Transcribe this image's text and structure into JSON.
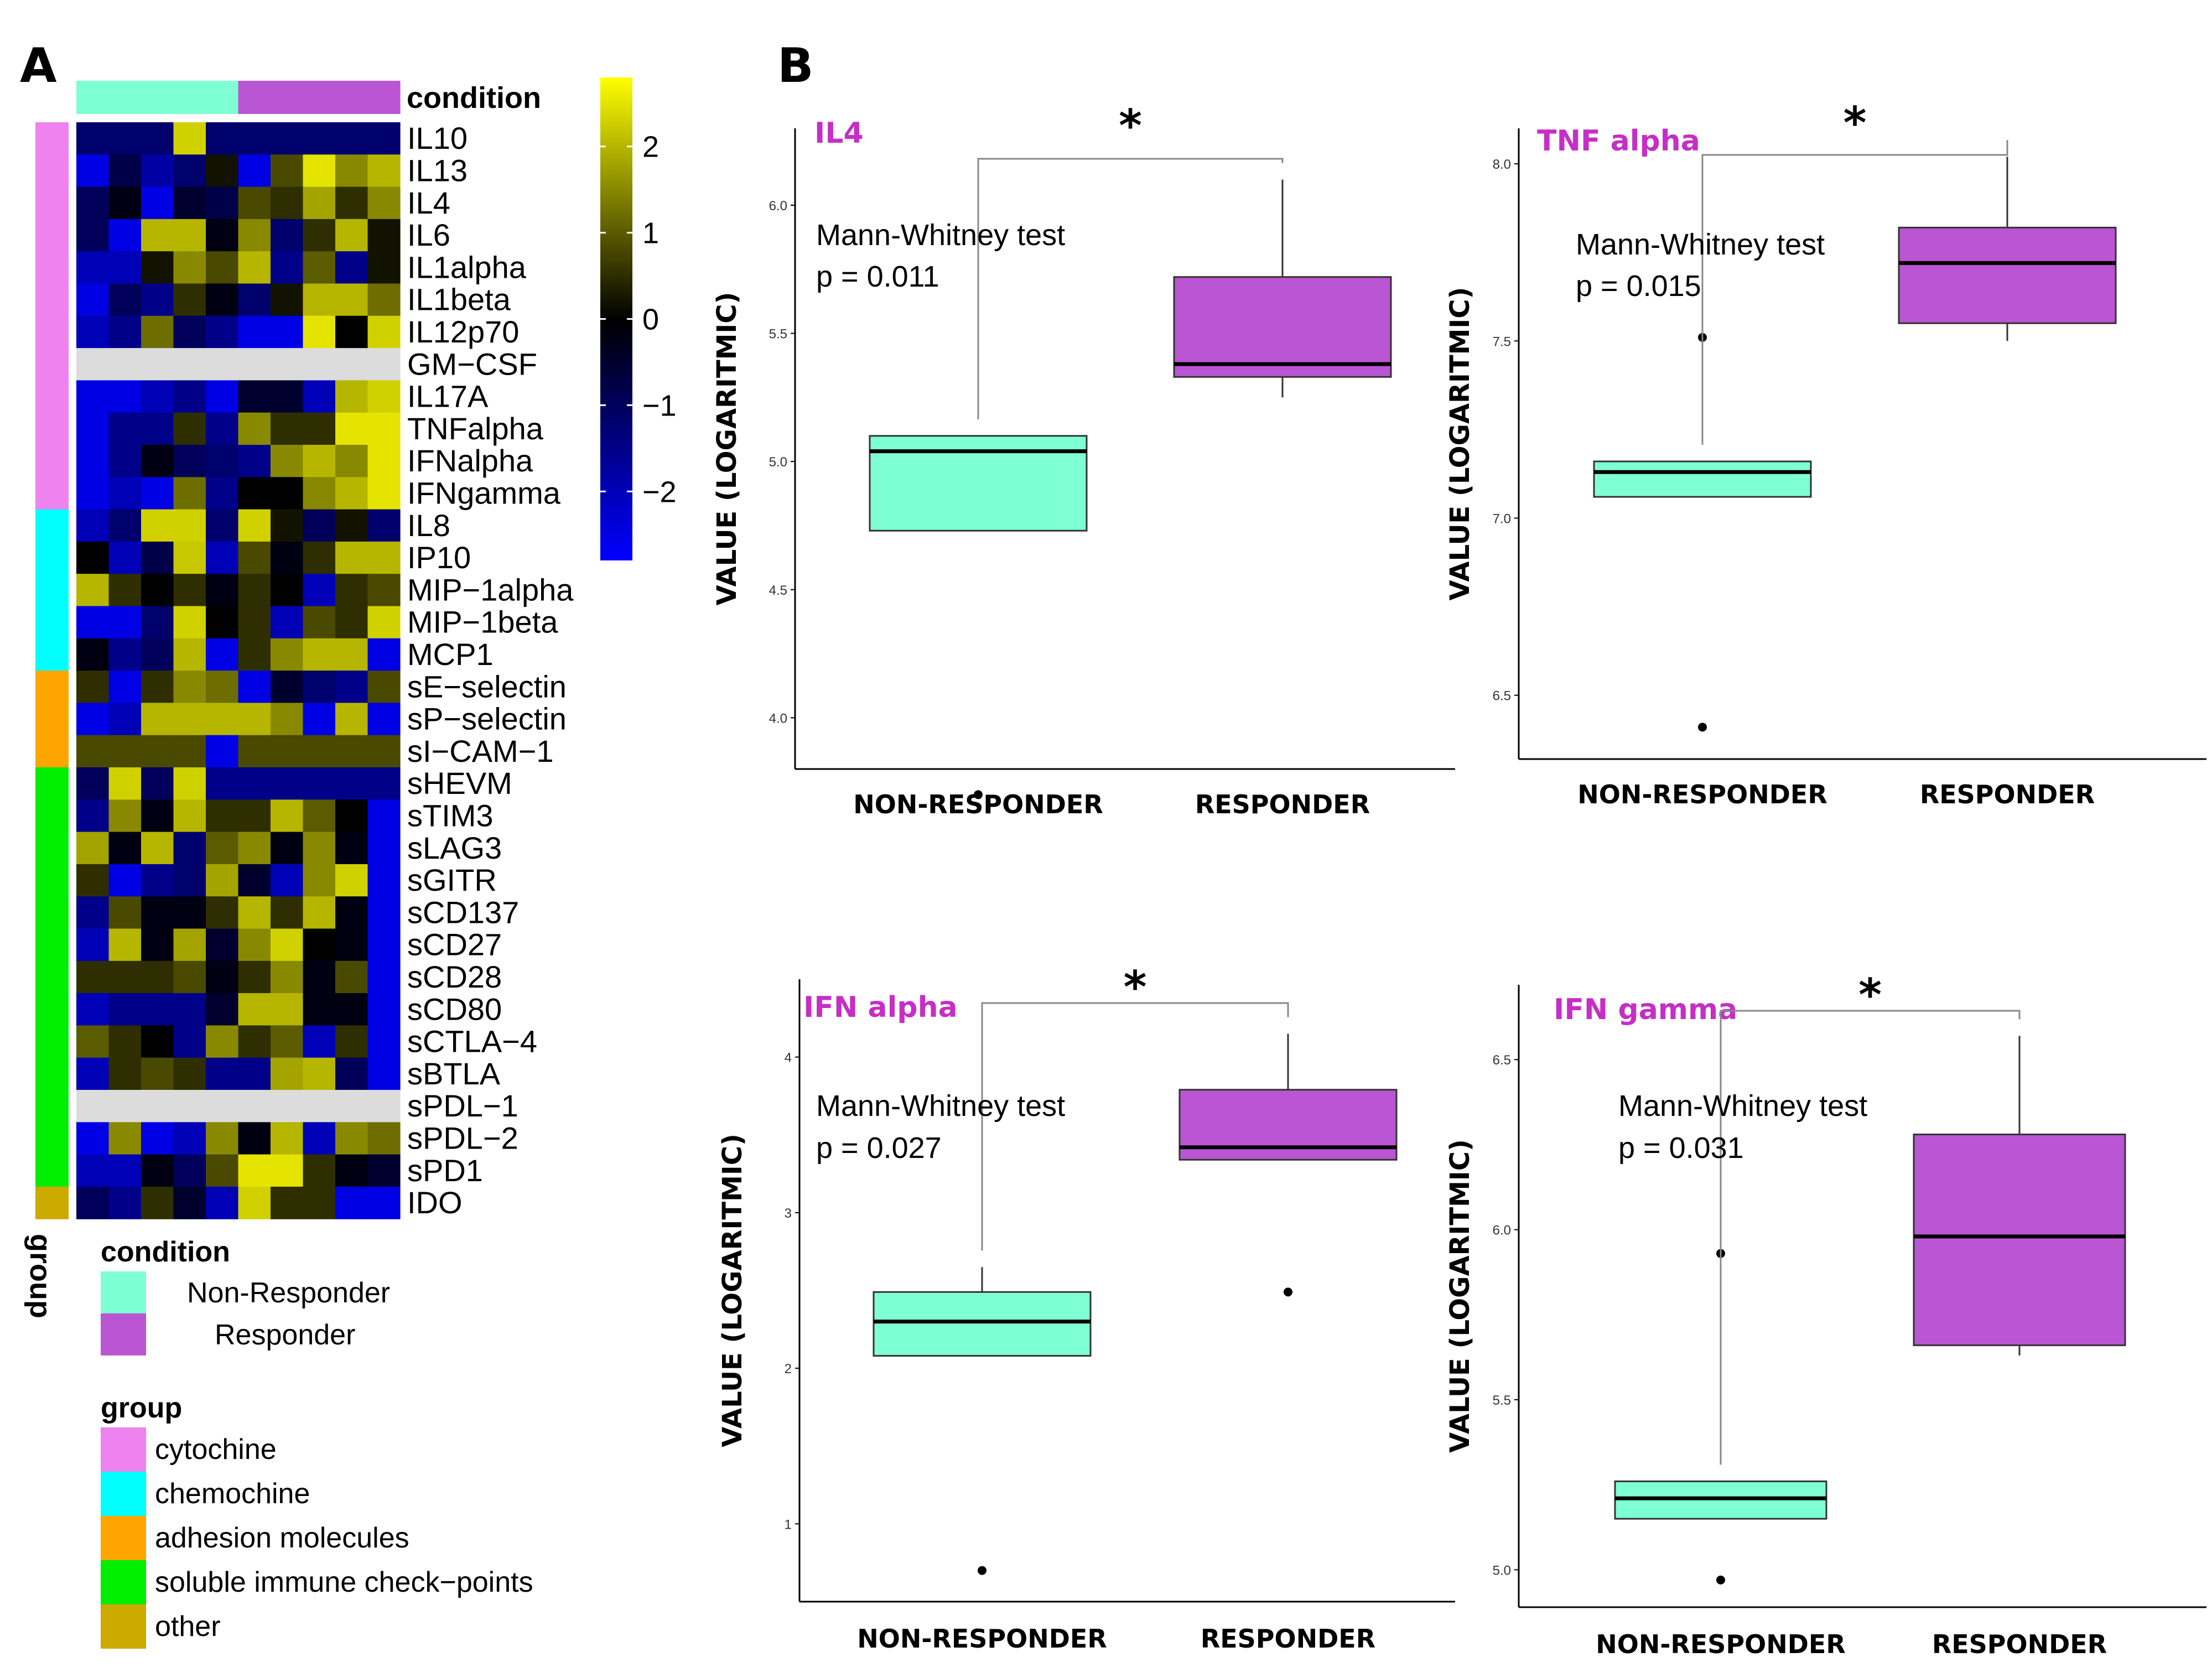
{
  "panels": {
    "a_label": "A",
    "b_label": "B"
  },
  "colors": {
    "non_responder": "#7FFFD4",
    "responder": "#BA55D3",
    "heat_low": "#0000FF",
    "heat_mid": "#000000",
    "heat_high": "#FFFF00",
    "na": "#DCDCDC",
    "group_colors": [
      "#EE82EE",
      "#00FFFF",
      "#FFA500",
      "#00EE00",
      "#CCAA00"
    ]
  },
  "chart_data": [
    {
      "type": "heatmap",
      "condition_header": "condition",
      "group_label": "group",
      "columns_conditions": [
        "Non-Responder",
        "Non-Responder",
        "Non-Responder",
        "Non-Responder",
        "Non-Responder",
        "Responder",
        "Responder",
        "Responder",
        "Responder",
        "Responder"
      ],
      "rows": [
        "IL10",
        "IL13",
        "IL4",
        "IL6",
        "IL1alpha",
        "IL1beta",
        "IL12p70",
        "GM−CSF",
        "IL17A",
        "TNFalpha",
        "IFNalpha",
        "IFNgamma",
        "IL8",
        "IP10",
        "MIP−1alpha",
        "MIP−1beta",
        "MCP1",
        "sE−selectin",
        "sP−selectin",
        "sI−CAM−1",
        "sHEVM",
        "sTIM3",
        "sLAG3",
        "sGITR",
        "sCD137",
        "sCD27",
        "sCD28",
        "sCD80",
        "sCTLA−4",
        "sBTLA",
        "sPDL−1",
        "sPDL−2",
        "sPD1",
        "IDO"
      ],
      "row_groups": [
        "cytochine",
        "cytochine",
        "cytochine",
        "cytochine",
        "cytochine",
        "cytochine",
        "cytochine",
        "cytochine",
        "cytochine",
        "cytochine",
        "cytochine",
        "cytochine",
        "chemochine",
        "chemochine",
        "chemochine",
        "chemochine",
        "chemochine",
        "adhesion molecules",
        "adhesion molecules",
        "adhesion molecules",
        "soluble immune check−points",
        "soluble immune check−points",
        "soluble immune check−points",
        "soluble immune check−points",
        "soluble immune check−points",
        "soluble immune check−points",
        "soluble immune check−points",
        "soluble immune check−points",
        "soluble immune check−points",
        "soluble immune check−points",
        "soluble immune check−points",
        "soluble immune check−points",
        "soluble immune check−points",
        "other"
      ],
      "values": [
        [
          -1.2,
          -1.2,
          -1.2,
          2.3,
          -1.2,
          -1.2,
          -1.2,
          -1.2,
          -1.2,
          -1.2
        ],
        [
          -2.5,
          -0.8,
          -1.8,
          -1.2,
          0.2,
          -2.5,
          0.8,
          2.5,
          1.5,
          2.0
        ],
        [
          -1.0,
          -0.2,
          -2.5,
          -0.5,
          -0.8,
          0.8,
          0.5,
          1.8,
          0.5,
          1.5
        ],
        [
          -1.0,
          -2.5,
          2.0,
          2.0,
          -0.2,
          1.5,
          -1.2,
          0.5,
          2.0,
          0.2
        ],
        [
          -2.0,
          -2.0,
          0.2,
          1.5,
          0.8,
          2.0,
          -1.5,
          1.0,
          -1.5,
          0.2
        ],
        [
          -2.5,
          -1.0,
          -1.5,
          0.5,
          -0.2,
          -1.2,
          0.2,
          2.0,
          2.0,
          1.2
        ],
        [
          -2.0,
          -1.5,
          1.2,
          -1.0,
          -1.5,
          -2.5,
          -2.5,
          2.5,
          0.0,
          2.3
        ],
        [
          null,
          null,
          null,
          null,
          null,
          null,
          null,
          null,
          null,
          null
        ],
        [
          -2.5,
          -2.5,
          -2.0,
          -1.5,
          -2.5,
          -0.5,
          -0.5,
          -2.0,
          2.0,
          2.3
        ],
        [
          -2.5,
          -1.5,
          -1.5,
          0.5,
          -1.5,
          1.5,
          0.5,
          0.5,
          2.5,
          2.5
        ],
        [
          -2.5,
          -1.5,
          -0.2,
          -1.0,
          -1.2,
          -1.5,
          1.5,
          2.0,
          1.5,
          2.5
        ],
        [
          -2.5,
          -2.0,
          -2.5,
          1.2,
          -1.5,
          0.0,
          0.0,
          1.5,
          2.0,
          2.5
        ],
        [
          -2.0,
          -1.2,
          2.3,
          2.3,
          -1.2,
          2.3,
          0.2,
          -1.0,
          0.2,
          -1.2
        ],
        [
          0.0,
          -2.0,
          -0.8,
          2.2,
          -2.0,
          0.8,
          -0.2,
          0.5,
          2.0,
          2.0
        ],
        [
          2.0,
          0.5,
          0.0,
          0.5,
          -0.2,
          0.5,
          0.0,
          -2.0,
          0.5,
          0.8
        ],
        [
          -2.5,
          -2.5,
          -1.2,
          2.3,
          0.0,
          0.5,
          -2.0,
          0.8,
          0.5,
          2.3
        ],
        [
          -0.2,
          -1.5,
          -1.0,
          2.0,
          -2.5,
          0.5,
          1.5,
          2.0,
          2.0,
          -2.5
        ],
        [
          0.5,
          -2.5,
          0.5,
          1.5,
          1.2,
          -2.5,
          -0.5,
          -1.2,
          -1.5,
          0.8
        ],
        [
          -2.5,
          -2.0,
          2.0,
          2.0,
          2.0,
          2.0,
          1.5,
          -2.5,
          2.0,
          -2.5
        ],
        [
          0.8,
          0.8,
          0.8,
          0.8,
          -2.5,
          0.8,
          0.8,
          0.8,
          0.8,
          0.8
        ],
        [
          -1.0,
          2.3,
          -1.0,
          2.3,
          -1.5,
          -1.5,
          -1.5,
          -1.5,
          -1.5,
          -1.5
        ],
        [
          -1.5,
          1.5,
          -0.2,
          2.0,
          0.5,
          0.5,
          2.0,
          1.0,
          0.0,
          -2.5
        ],
        [
          1.8,
          -0.2,
          2.0,
          -1.2,
          1.0,
          1.5,
          -0.2,
          1.5,
          -0.2,
          -2.5
        ],
        [
          0.5,
          -2.5,
          -1.5,
          -1.2,
          1.8,
          -0.5,
          -2.0,
          1.5,
          2.3,
          -2.5
        ],
        [
          -1.5,
          0.8,
          -0.2,
          -0.2,
          0.5,
          2.0,
          0.5,
          2.0,
          -0.2,
          -2.5
        ],
        [
          -2.0,
          2.0,
          -0.2,
          1.8,
          -0.5,
          1.5,
          2.3,
          0.0,
          -0.2,
          -2.5
        ],
        [
          0.5,
          0.5,
          0.5,
          0.8,
          -0.2,
          0.5,
          1.5,
          -0.2,
          0.8,
          -2.5
        ],
        [
          -2.0,
          -1.5,
          -1.5,
          -1.5,
          -0.5,
          2.0,
          2.0,
          -0.2,
          -0.2,
          -2.5
        ],
        [
          1.0,
          0.5,
          0.0,
          -1.5,
          1.5,
          0.5,
          1.0,
          -2.0,
          0.5,
          -2.5
        ],
        [
          -2.0,
          0.5,
          0.8,
          0.5,
          -1.5,
          -1.5,
          1.8,
          2.0,
          -1.0,
          -2.5
        ],
        [
          null,
          null,
          null,
          null,
          null,
          null,
          null,
          null,
          null,
          null
        ],
        [
          -2.5,
          1.5,
          -2.5,
          -2.0,
          1.5,
          -0.2,
          2.0,
          -2.0,
          1.5,
          1.2
        ],
        [
          -2.0,
          -2.0,
          -0.2,
          -1.0,
          0.8,
          2.5,
          2.5,
          0.5,
          -0.2,
          -0.5
        ],
        [
          -1.0,
          -1.5,
          0.5,
          -0.5,
          -2.0,
          2.3,
          0.5,
          0.5,
          -2.5,
          -2.5
        ]
      ],
      "colorbar": {
        "ticks": [
          2,
          1,
          0,
          -1,
          -2
        ],
        "tick_labels": [
          "2",
          "1",
          "0",
          "−1",
          "−2"
        ],
        "range": [
          -2.8,
          2.8
        ]
      },
      "legend_condition": {
        "title": "condition",
        "entries": [
          "Non-Responder",
          "Responder"
        ]
      },
      "legend_group": {
        "title": "group",
        "entries": [
          "cytochine",
          "chemochine",
          "adhesion molecules",
          "soluble immune check−points",
          "other"
        ]
      }
    },
    {
      "type": "box",
      "title": "IL4",
      "ylabel": "VALUE (LOGARITMIC)",
      "categories": [
        "NON-RESPONDER",
        "RESPONDER"
      ],
      "ylim": [
        3.8,
        6.3
      ],
      "yticks": [
        "4.0",
        "4.5",
        "5.0",
        "5.5",
        "6.0"
      ],
      "stat_test": "Mann-Whitney test",
      "p_text": "p = 0.011",
      "significance": "*",
      "boxes": [
        {
          "q1": 4.73,
          "median": 5.04,
          "q3": 5.1,
          "wlow": 4.73,
          "whigh": 5.1,
          "outliers": [
            3.7
          ]
        },
        {
          "q1": 5.33,
          "median": 5.38,
          "q3": 5.72,
          "wlow": 5.25,
          "whigh": 6.1,
          "outliers": []
        }
      ]
    },
    {
      "type": "box",
      "title": "TNF alpha",
      "ylabel": "VALUE (LOGARITMIC)",
      "categories": [
        "NON-RESPONDER",
        "RESPONDER"
      ],
      "ylim": [
        6.32,
        8.1
      ],
      "yticks": [
        "6.5",
        "7.0",
        "7.5",
        "8.0"
      ],
      "stat_test": "Mann-Whitney test",
      "p_text": "p = 0.015",
      "significance": "*",
      "boxes": [
        {
          "q1": 7.06,
          "median": 7.13,
          "q3": 7.16,
          "wlow": 7.06,
          "whigh": 7.16,
          "outliers": [
            7.51,
            6.41
          ]
        },
        {
          "q1": 7.55,
          "median": 7.72,
          "q3": 7.82,
          "wlow": 7.5,
          "whigh": 8.02,
          "outliers": []
        }
      ]
    },
    {
      "type": "box",
      "title": "IFN alpha",
      "ylabel": "VALUE (LOGARITMIC)",
      "categories": [
        "NON-RESPONDER",
        "RESPONDER"
      ],
      "ylim": [
        0.5,
        4.5
      ],
      "yticks": [
        "1",
        "2",
        "3",
        "4"
      ],
      "stat_test": "Mann-Whitney test",
      "p_text": "p = 0.027",
      "significance": "*",
      "boxes": [
        {
          "q1": 2.08,
          "median": 2.3,
          "q3": 2.49,
          "wlow": 2.08,
          "whigh": 2.65,
          "outliers": [
            0.7
          ]
        },
        {
          "q1": 3.34,
          "median": 3.42,
          "q3": 3.79,
          "wlow": 3.34,
          "whigh": 4.15,
          "outliers": [
            2.49
          ]
        }
      ]
    },
    {
      "type": "box",
      "title": "IFN gamma",
      "ylabel": "VALUE (LOGARITMIC)",
      "categories": [
        "NON-RESPONDER",
        "RESPONDER"
      ],
      "ylim": [
        4.89,
        6.72
      ],
      "yticks": [
        "5.0",
        "5.5",
        "6.0",
        "6.5"
      ],
      "stat_test": "Mann-Whitney test",
      "p_text": "p = 0.031",
      "significance": "*",
      "boxes": [
        {
          "q1": 5.15,
          "median": 5.21,
          "q3": 5.26,
          "wlow": 5.15,
          "whigh": 5.26,
          "outliers": [
            5.93,
            4.97
          ]
        },
        {
          "q1": 5.66,
          "median": 5.98,
          "q3": 6.28,
          "wlow": 5.63,
          "whigh": 6.57,
          "outliers": []
        }
      ]
    }
  ]
}
